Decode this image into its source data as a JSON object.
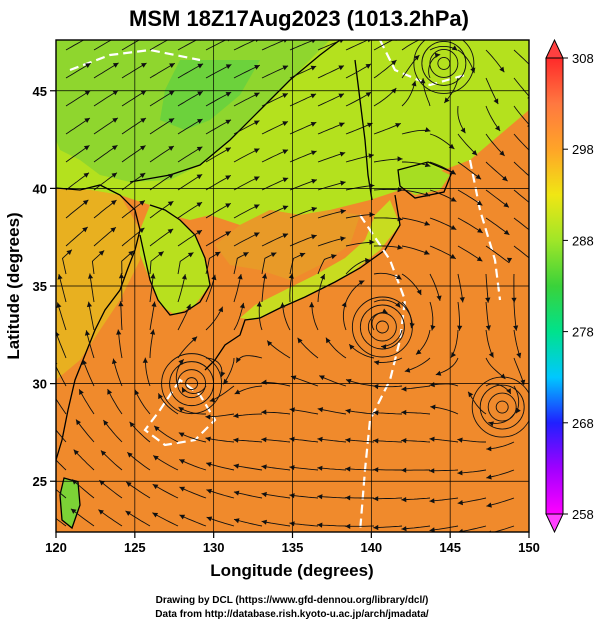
{
  "title": "MSM 18Z17Aug2023 (1013.2hPa)",
  "map": {
    "x_axis": {
      "label": "Longitude (degrees)",
      "range": [
        120,
        150
      ],
      "ticks": [
        120,
        125,
        130,
        135,
        140,
        145,
        150
      ]
    },
    "y_axis": {
      "label": "Latitude  (degrees)",
      "range": [
        22.4,
        47.6
      ],
      "ticks": [
        25,
        30,
        35,
        40,
        45
      ]
    },
    "grid": true,
    "field": "surface temperature with wind streamlines",
    "vortices": [
      {
        "lon": 128.6,
        "lat": 30.0
      },
      {
        "lon": 140.7,
        "lat": 32.9
      },
      {
        "lon": 148.3,
        "lat": 28.8
      },
      {
        "lon": 144.6,
        "lat": 46.4
      }
    ],
    "colors": {
      "land_cold": "#6cd23c",
      "land_mid": "#b4e11e",
      "sea_warm": "#f08a2c",
      "coast": "#000000",
      "white_contour": "#ffffff"
    }
  },
  "colorbar": {
    "ticks": [
      258,
      268,
      278,
      288,
      298,
      308
    ],
    "min": 258,
    "max": 308,
    "colors": [
      "#ff00ff",
      "#a000ff",
      "#2020ff",
      "#00c8ff",
      "#00e28c",
      "#3ad23a",
      "#a0e628",
      "#f0e614",
      "#ffa428",
      "#ff7840",
      "#ff2a2a"
    ]
  },
  "credits": {
    "line1": "Drawing by DCL (https://www.gfd-dennou.org/library/dcl/)",
    "line2": "Data from http://database.rish.kyoto-u.ac.jp/arch/jmadata/"
  }
}
